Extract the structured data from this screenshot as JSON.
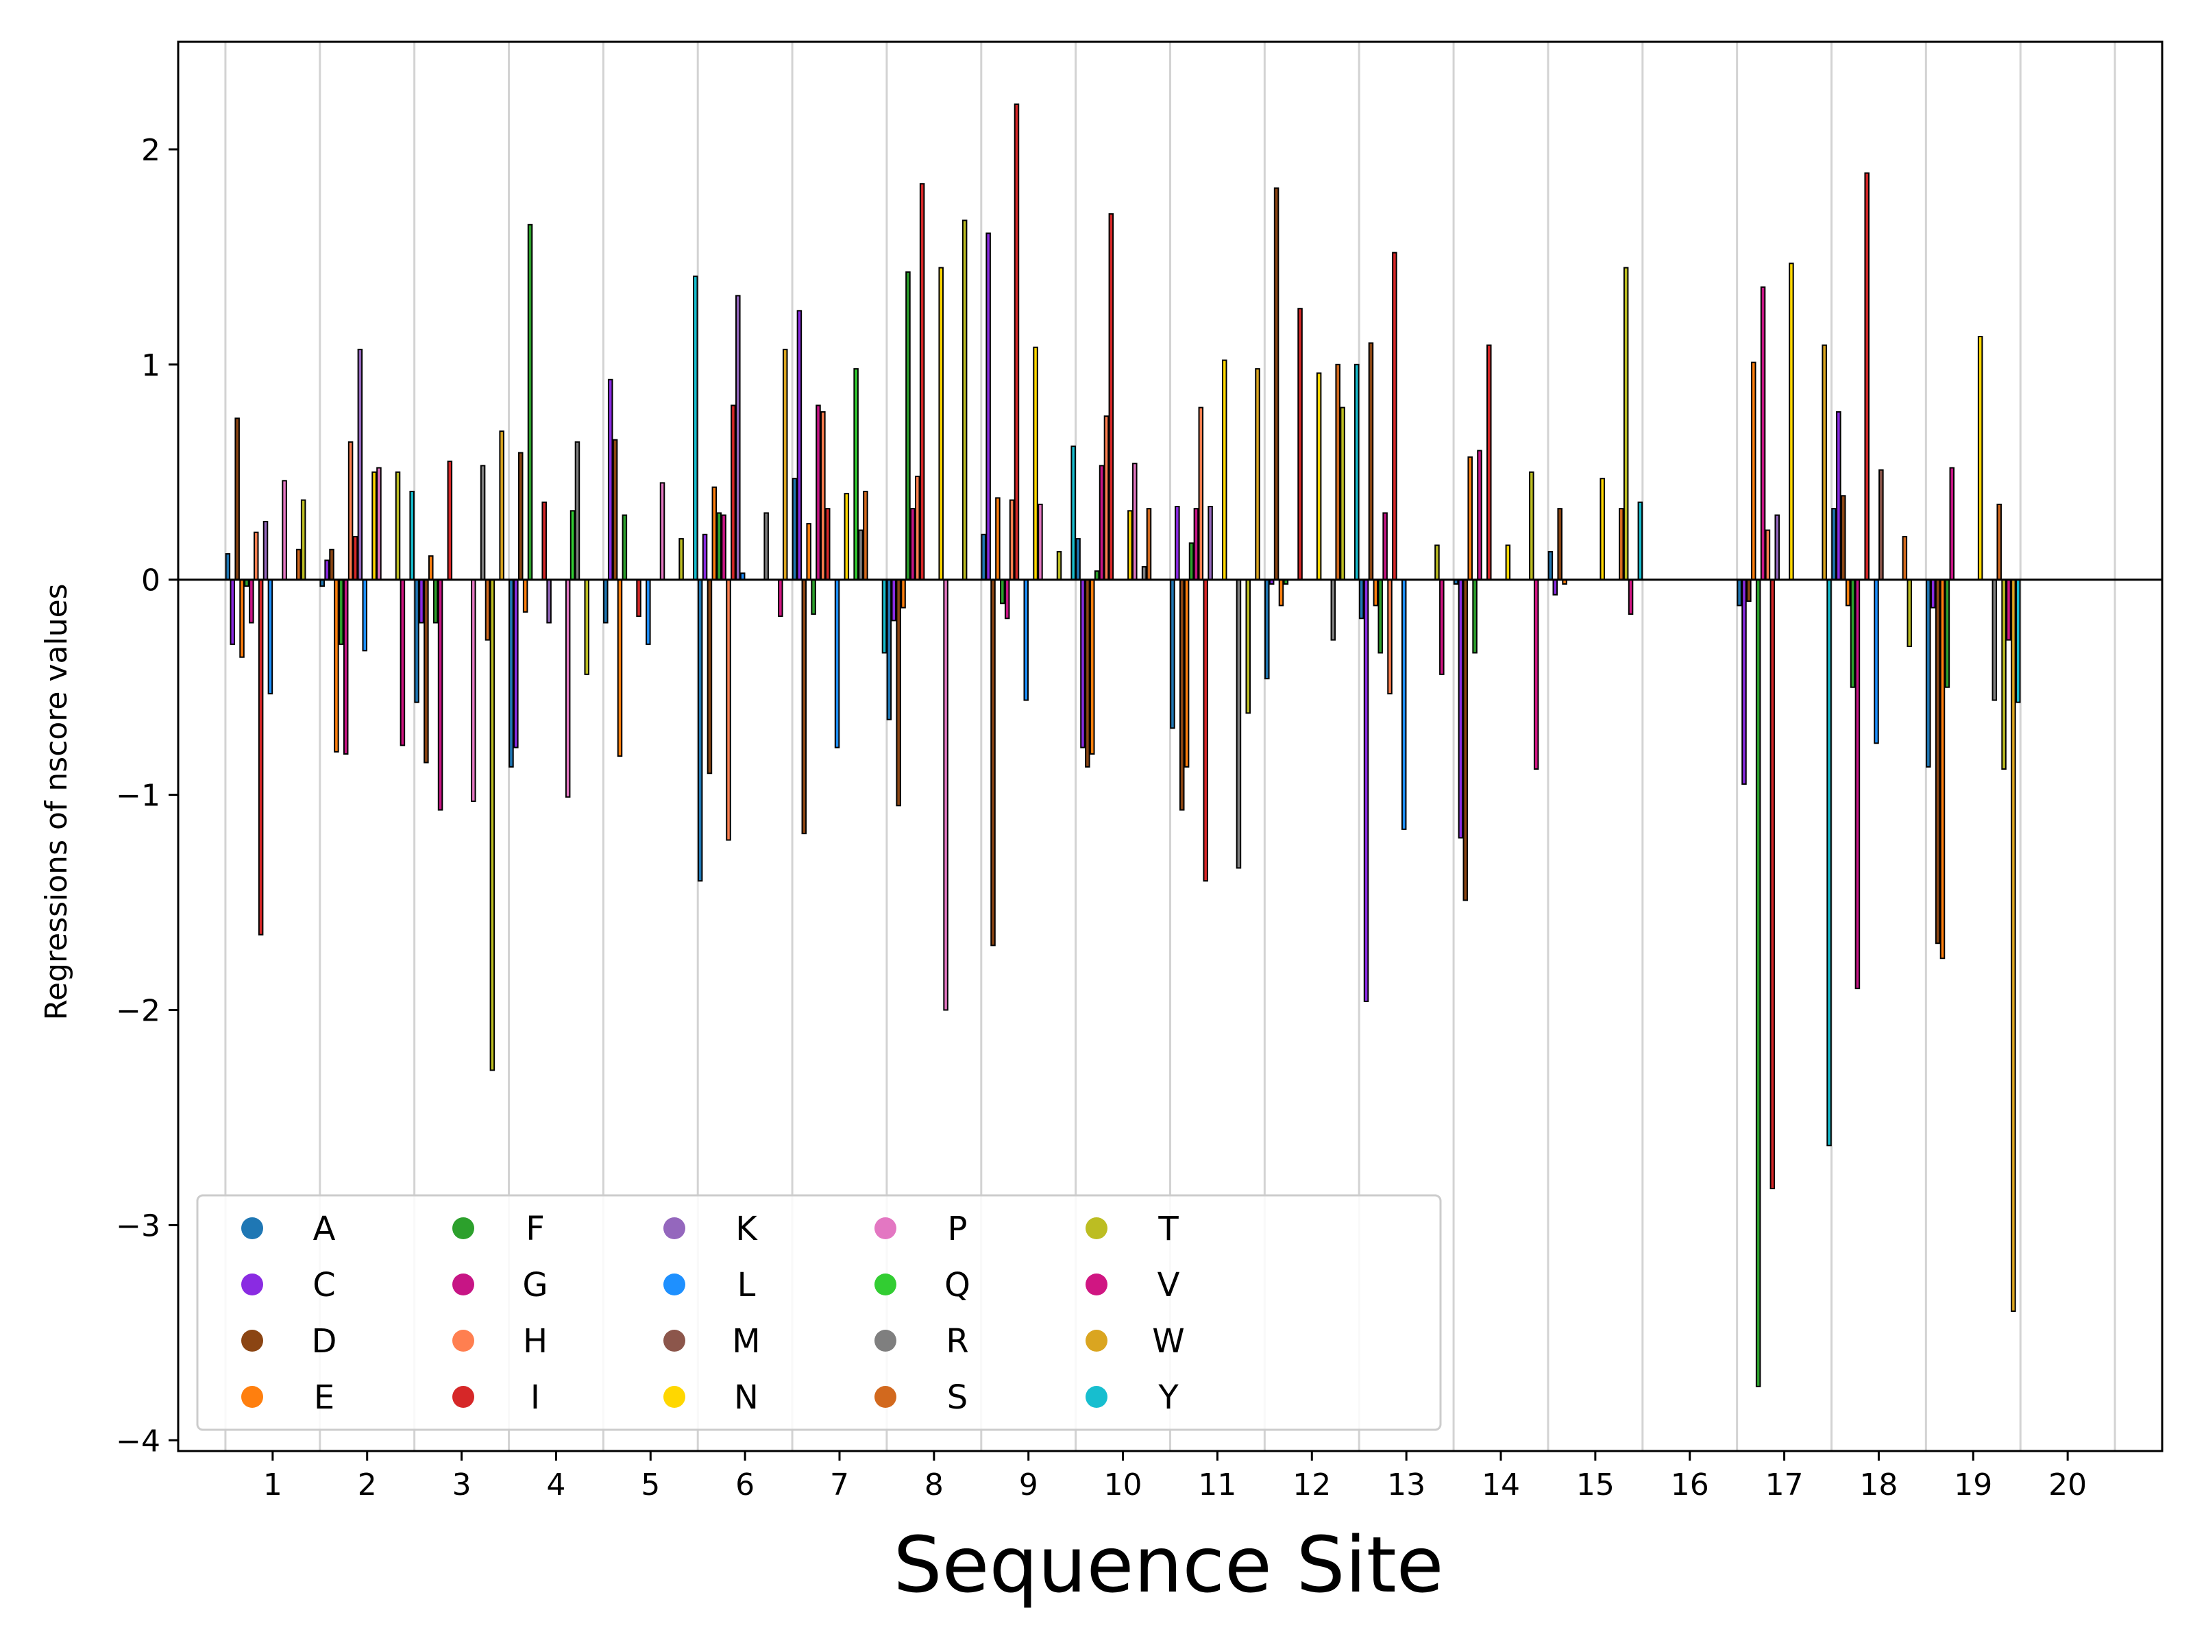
{
  "chart_data": {
    "type": "bar",
    "xlabel": "Sequence Site",
    "ylabel": "Regressions of nscore values",
    "xlim": [
      0,
      21
    ],
    "ylim": [
      -4.05,
      2.5
    ],
    "yticks": [
      -4,
      -3,
      -2,
      -1,
      0,
      1,
      2
    ],
    "ytick_labels": [
      "−4",
      "−3",
      "−2",
      "−1",
      "0",
      "1",
      "2"
    ],
    "categories": [
      "1",
      "2",
      "3",
      "4",
      "5",
      "6",
      "7",
      "8",
      "9",
      "10",
      "11",
      "12",
      "13",
      "14",
      "15",
      "16",
      "17",
      "18",
      "19",
      "20"
    ],
    "grid": "vertical lines between sites",
    "legend_position": "lower-left",
    "series": [
      {
        "name": "A",
        "color": "#1f77b4",
        "values": [
          0.12,
          -0.03,
          -0.57,
          -0.87,
          -0.2,
          -1.4,
          0.47,
          -0.65,
          0.21,
          0.19,
          -0.69,
          -0.46,
          -0.18,
          -0.02,
          0.13,
          null,
          -0.12,
          0.33,
          -0.87,
          null
        ]
      },
      {
        "name": "C",
        "color": "#8a2be2",
        "values": [
          -0.3,
          0.09,
          -0.2,
          -0.78,
          0.93,
          0.21,
          1.25,
          -0.19,
          1.61,
          -0.78,
          0.34,
          -0.02,
          -1.96,
          -1.2,
          -0.07,
          null,
          -0.95,
          0.78,
          -0.13,
          null
        ]
      },
      {
        "name": "D",
        "color": "#8b4513",
        "values": [
          0.75,
          0.14,
          -0.85,
          0.59,
          0.65,
          -0.9,
          -1.18,
          -1.05,
          -1.7,
          -0.87,
          -1.07,
          1.82,
          1.1,
          -1.49,
          0.33,
          null,
          -0.1,
          0.39,
          -1.69,
          null
        ]
      },
      {
        "name": "E",
        "color": "#ff7f0e",
        "values": [
          -0.36,
          -0.8,
          0.11,
          -0.15,
          -0.82,
          0.43,
          0.26,
          -0.13,
          0.38,
          -0.81,
          -0.87,
          -0.12,
          -0.12,
          0.57,
          -0.02,
          null,
          1.01,
          -0.12,
          -1.76,
          null
        ]
      },
      {
        "name": "F",
        "color": "#2ca02c",
        "values": [
          -0.03,
          -0.3,
          -0.2,
          1.65,
          0.3,
          0.31,
          -0.16,
          1.43,
          -0.11,
          0.04,
          0.17,
          -0.02,
          -0.34,
          -0.34,
          0.0,
          null,
          -3.75,
          -0.5,
          -0.5,
          null
        ]
      },
      {
        "name": "G",
        "color": "#c71585",
        "values": [
          -0.2,
          -0.81,
          -1.07,
          0.0,
          0.0,
          0.3,
          0.81,
          0.33,
          -0.18,
          0.53,
          0.33,
          0.0,
          0.31,
          0.6,
          0.0,
          null,
          1.36,
          -1.9,
          0.52,
          null
        ]
      },
      {
        "name": "H",
        "color": "#ff7f50",
        "values": [
          0.22,
          0.64,
          0.0,
          0.0,
          0.0,
          -1.21,
          0.78,
          0.48,
          0.37,
          0.76,
          0.8,
          0.0,
          -0.53,
          0.0,
          0.0,
          null,
          0.23,
          0.0,
          0.0,
          null
        ]
      },
      {
        "name": "I",
        "color": "#d62728",
        "values": [
          -1.65,
          0.2,
          0.55,
          0.36,
          -0.17,
          0.81,
          0.33,
          1.84,
          2.21,
          1.7,
          -1.4,
          1.26,
          1.52,
          1.09,
          0.0,
          null,
          -2.83,
          1.89,
          0.0,
          null
        ]
      },
      {
        "name": "K",
        "color": "#9467bd",
        "values": [
          0.27,
          1.07,
          0.0,
          -0.2,
          0.0,
          1.32,
          0.0,
          0.0,
          0.0,
          0.0,
          0.34,
          0.0,
          0.0,
          0.0,
          0.0,
          null,
          0.3,
          0.0,
          0.0,
          null
        ]
      },
      {
        "name": "L",
        "color": "#1e90ff",
        "values": [
          -0.53,
          -0.33,
          0.0,
          0.0,
          -0.3,
          0.03,
          -0.78,
          0.0,
          -0.56,
          0.0,
          0.0,
          0.0,
          -1.16,
          0.0,
          0.0,
          null,
          0.0,
          -0.76,
          0.0,
          null
        ]
      },
      {
        "name": "M",
        "color": "#8c564b",
        "values": [
          0.0,
          0.0,
          0.0,
          0.0,
          0.0,
          0.0,
          0.0,
          0.0,
          0.0,
          0.0,
          0.0,
          0.0,
          0.0,
          0.0,
          0.0,
          null,
          0.0,
          0.51,
          0.0,
          null
        ]
      },
      {
        "name": "N",
        "color": "#ffd700",
        "values": [
          0.0,
          0.5,
          0.0,
          0.0,
          0.0,
          0.0,
          0.4,
          1.45,
          1.08,
          0.32,
          1.02,
          0.96,
          0.0,
          0.16,
          0.47,
          null,
          1.47,
          0.0,
          1.13,
          null
        ]
      },
      {
        "name": "P",
        "color": "#e377c2",
        "values": [
          0.46,
          0.52,
          -1.03,
          -1.01,
          0.45,
          0.0,
          0.0,
          -2.0,
          0.35,
          0.54,
          0.0,
          0.0,
          0.0,
          0.0,
          0.0,
          null,
          0.0,
          0.0,
          0.0,
          null
        ]
      },
      {
        "name": "Q",
        "color": "#32cd32",
        "values": [
          0.0,
          0.0,
          0.0,
          0.32,
          0.0,
          0.0,
          0.98,
          0.0,
          0.0,
          0.0,
          0.0,
          0.0,
          0.0,
          0.0,
          0.0,
          null,
          0.0,
          0.0,
          0.0,
          null
        ]
      },
      {
        "name": "R",
        "color": "#7f7f7f",
        "values": [
          0.0,
          0.0,
          0.53,
          0.64,
          0.0,
          0.31,
          0.23,
          0.0,
          0.0,
          0.06,
          -1.34,
          -0.28,
          0.0,
          0.0,
          0.0,
          null,
          0.0,
          0.0,
          -0.56,
          null
        ]
      },
      {
        "name": "S",
        "color": "#d2691e",
        "values": [
          0.14,
          0.0,
          -0.28,
          0.0,
          0.0,
          0.0,
          0.41,
          0.0,
          0.0,
          0.33,
          0.0,
          1.0,
          0.0,
          0.0,
          0.33,
          null,
          0.0,
          0.2,
          0.35,
          null
        ]
      },
      {
        "name": "T",
        "color": "#bcbd22",
        "values": [
          0.37,
          0.5,
          -2.28,
          -0.44,
          0.19,
          0.0,
          0.0,
          1.67,
          0.13,
          0.0,
          -0.62,
          0.8,
          0.16,
          0.5,
          1.45,
          null,
          0.0,
          -0.31,
          -0.88,
          null
        ]
      },
      {
        "name": "V",
        "color": "#d01682",
        "values": [
          0.0,
          -0.77,
          0.0,
          0.0,
          0.0,
          -0.17,
          0.0,
          0.0,
          0.0,
          0.0,
          0.0,
          0.0,
          -0.44,
          -0.88,
          -0.16,
          null,
          0.0,
          0.0,
          -0.28,
          null
        ]
      },
      {
        "name": "W",
        "color": "#daa520",
        "values": [
          0.0,
          0.0,
          0.69,
          0.0,
          0.0,
          1.07,
          0.0,
          0.0,
          0.0,
          0.0,
          0.98,
          0.0,
          0.0,
          0.0,
          0.0,
          null,
          1.09,
          0.0,
          -3.4,
          null
        ]
      },
      {
        "name": "Y",
        "color": "#17becf",
        "values": [
          0.0,
          0.41,
          0.0,
          0.0,
          1.41,
          0.0,
          -0.34,
          0.0,
          0.62,
          0.0,
          0.0,
          1.0,
          0.0,
          0.0,
          0.36,
          null,
          -2.63,
          0.0,
          -0.57,
          null
        ]
      }
    ]
  }
}
